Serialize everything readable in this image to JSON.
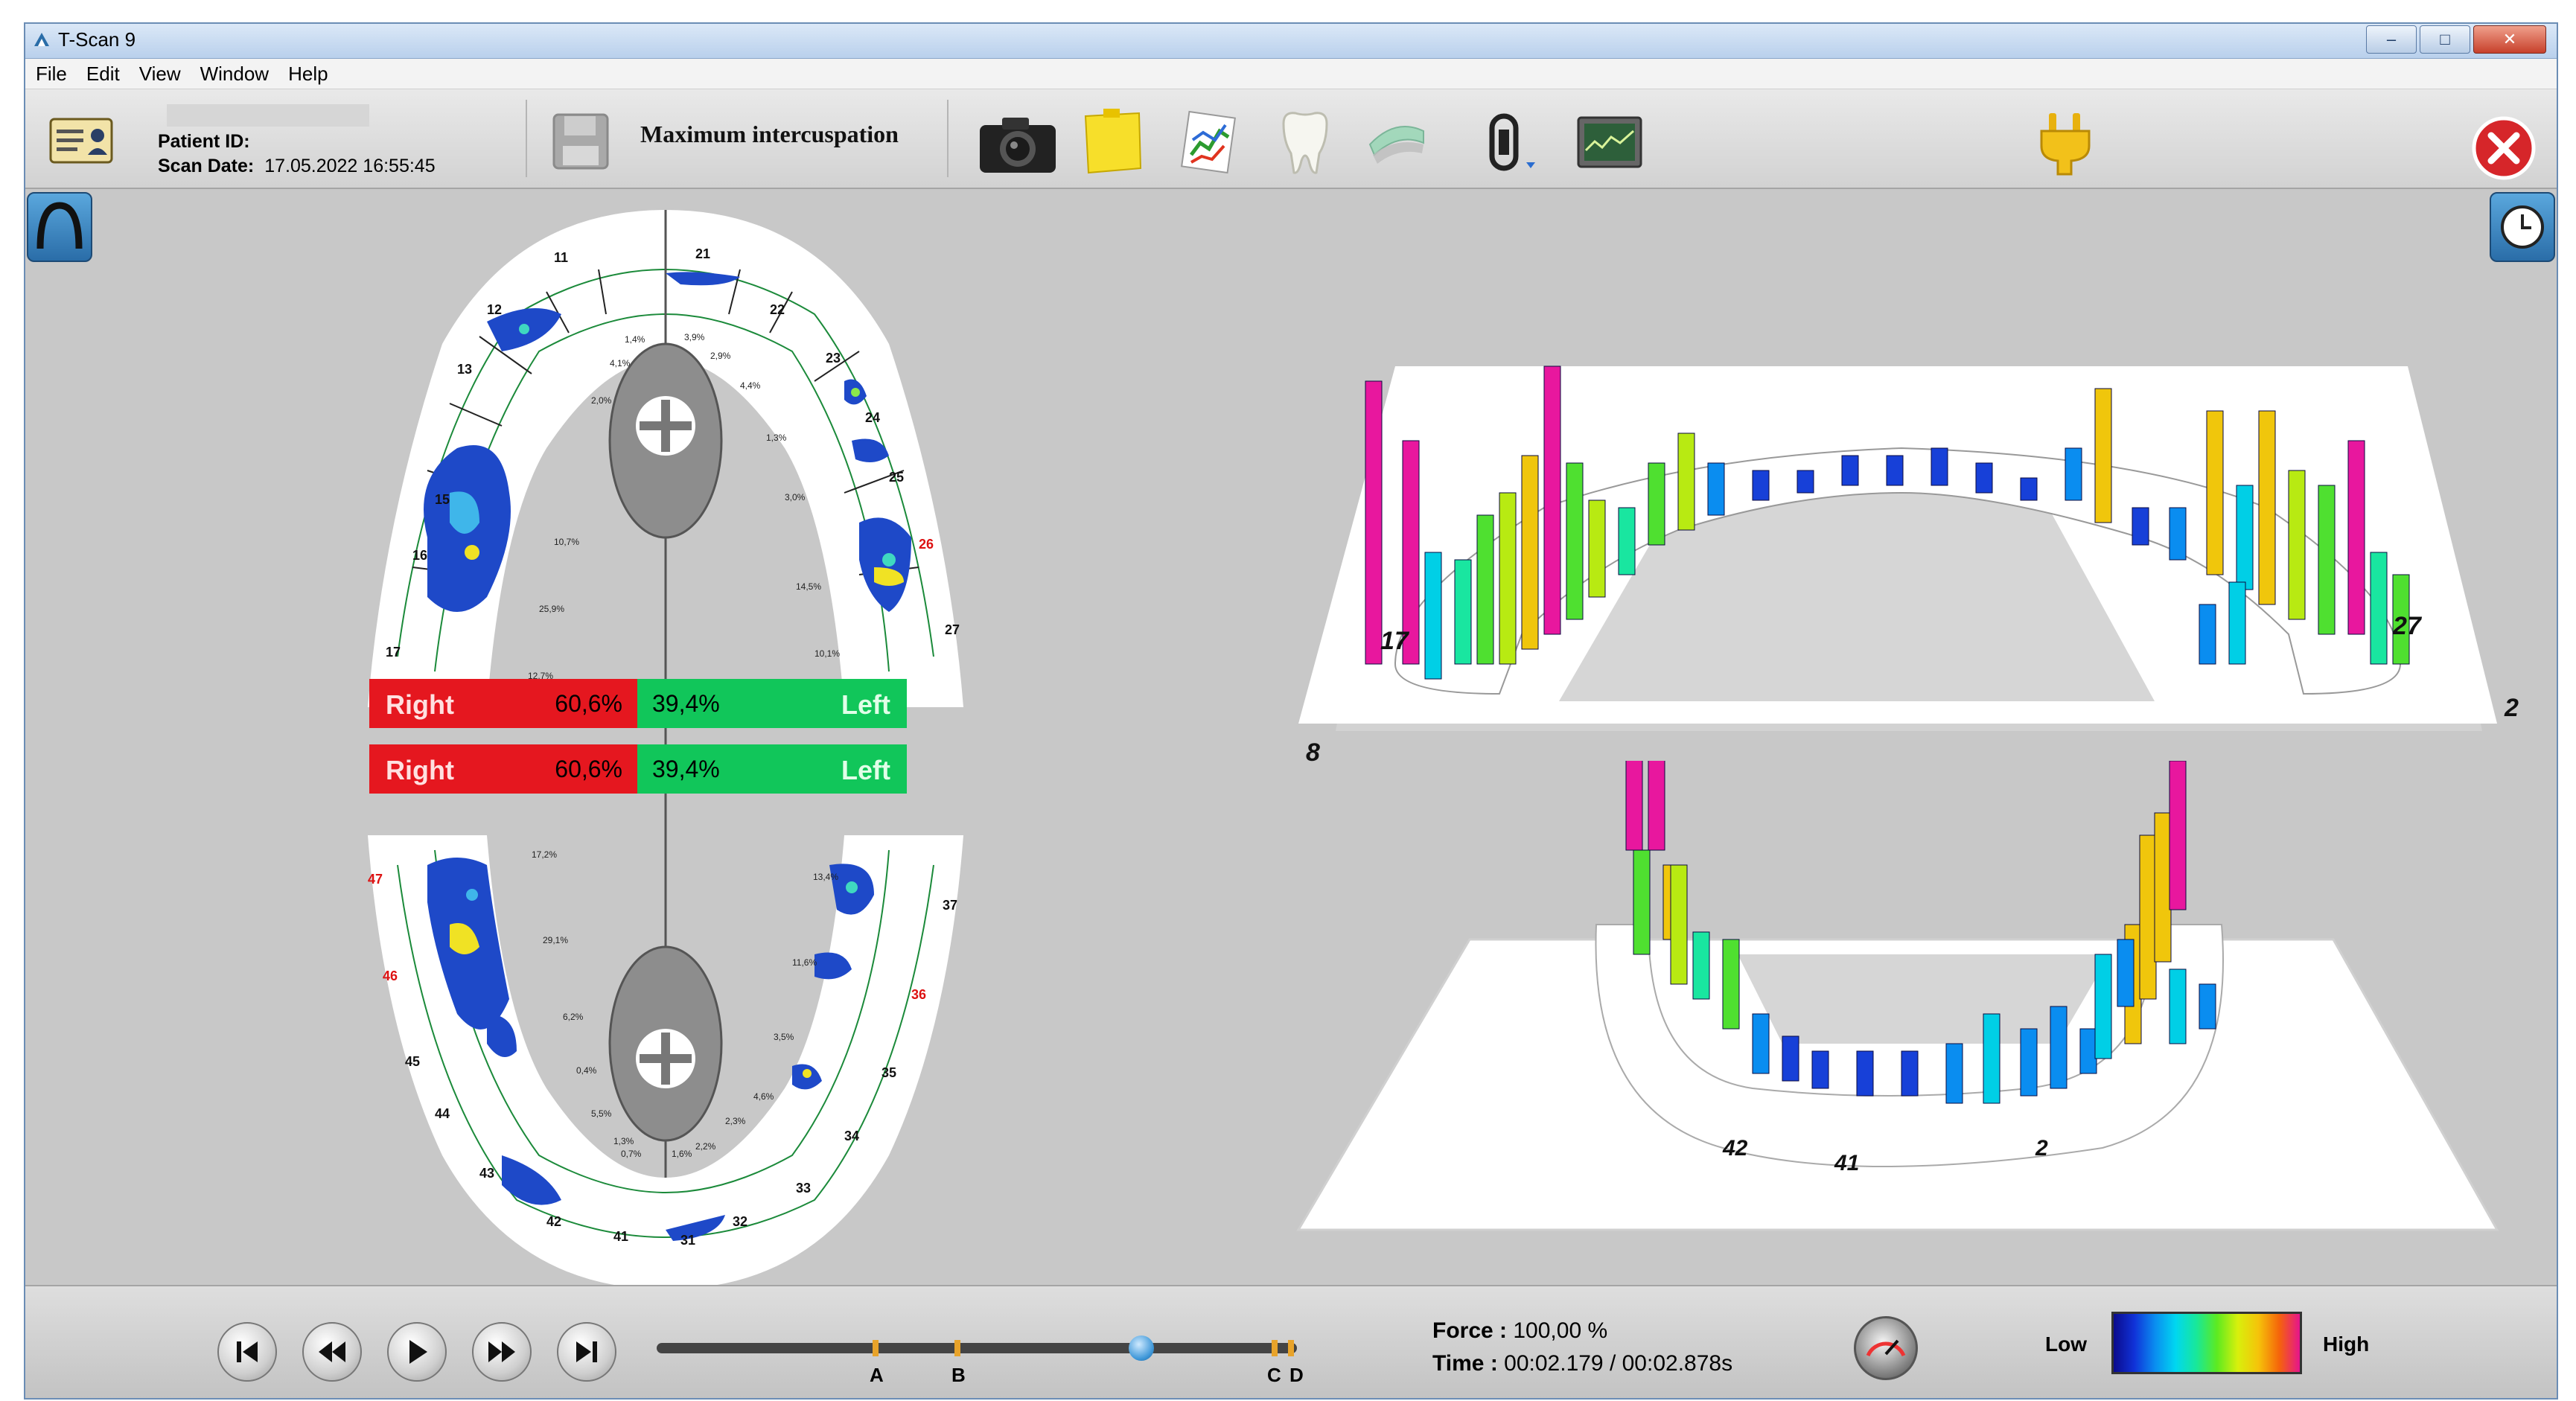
{
  "window": {
    "title": "T-Scan 9",
    "minimize": "–",
    "maximize": "□",
    "close": "✕"
  },
  "menu": [
    "File",
    "Edit",
    "View",
    "Window",
    "Help"
  ],
  "patient": {
    "id_label": "Patient ID:",
    "id_value": "",
    "date_label": "Scan Date:",
    "date_value": "17.05.2022 16:55:45"
  },
  "mode": "Maximum intercuspation",
  "icons": {
    "patient_card": "patient-card-icon",
    "save": "save-icon",
    "camera": "camera-icon",
    "note": "note-icon",
    "graph": "graph-icon",
    "tooth": "tooth-icon",
    "arch": "arch-icon",
    "view_toggle": "view-toggle-icon",
    "monitor": "monitor-icon",
    "connection": "plug-icon",
    "exit": "exit-icon",
    "arch_view": "arch-view-icon",
    "history": "clock-icon"
  },
  "balance_upper": {
    "right_label": "Right",
    "right_value": "60,6%",
    "left_value": "39,4%",
    "left_label": "Left"
  },
  "balance_lower": {
    "right_label": "Right",
    "right_value": "60,6%",
    "left_value": "39,4%",
    "left_label": "Left"
  },
  "upper_arch": {
    "teeth": [
      "11",
      "12",
      "13",
      "15",
      "16",
      "17",
      "21",
      "22",
      "23",
      "24",
      "25",
      "26",
      "27"
    ],
    "percentages": [
      "1,4%",
      "3,9%",
      "2,9%",
      "4,1%",
      "4,4%",
      "2,0%",
      "1,3%",
      "3,0%",
      "10,7%",
      "14,5%",
      "25,9%",
      "10,1%",
      "12,7%"
    ]
  },
  "lower_arch": {
    "teeth": [
      "47",
      "46",
      "45",
      "44",
      "43",
      "42",
      "41",
      "31",
      "32",
      "33",
      "34",
      "35",
      "36",
      "37"
    ],
    "percentages": [
      "17,2%",
      "13,4%",
      "29,1%",
      "11,6%",
      "6,2%",
      "3,5%",
      "0,4%",
      "4,6%",
      "5,5%",
      "2,3%",
      "1,3%",
      "0,7%",
      "1,6%",
      "2,2%"
    ]
  },
  "view3d": {
    "upper_labels": [
      "17",
      "27",
      "8",
      "2"
    ],
    "lower_labels": [
      "42",
      "41",
      "2"
    ]
  },
  "playback": {
    "markers": [
      "A",
      "B",
      "C",
      "D"
    ],
    "position": 0.757
  },
  "status": {
    "force_label": "Force :",
    "force_value": "100,00 %",
    "time_label": "Time :",
    "time_value": "00:02.179 / 00:02.878s"
  },
  "legend": {
    "low": "Low",
    "high": "High"
  },
  "colors": {
    "right": "#e5171f",
    "left": "#11c65a",
    "accent": "#2a6da8"
  }
}
